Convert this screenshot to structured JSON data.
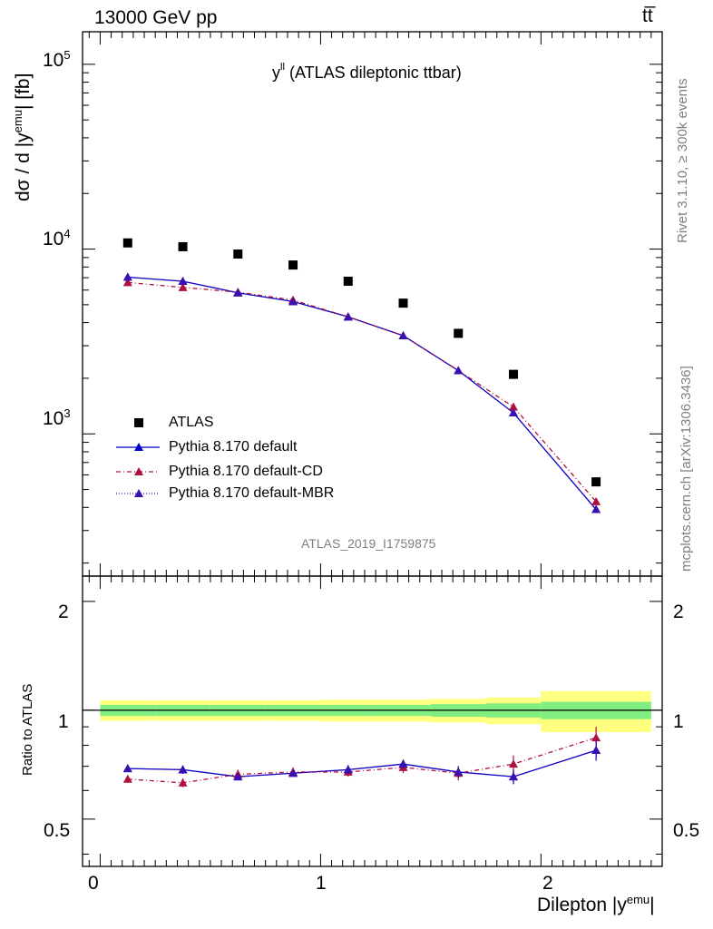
{
  "header": {
    "left": "13000 GeV pp",
    "right": "tt̅"
  },
  "plot_title": "y",
  "plot_title_sup": "ll",
  "plot_title_rest": "(ATLAS dileptonic ttbar)",
  "side_labels": {
    "rivet": "Rivet 3.1.10, ≥ 300k events",
    "mcplots": "mcplots.cern.ch [arXiv:1306.3436]"
  },
  "analysis_id": "ATLAS_2019_I1759875",
  "axes": {
    "main_ylabel": "dσ / d |y",
    "main_ylabel_sup": "emu",
    "main_ylabel_end": "| [fb]",
    "ratio_ylabel": "Ratio to ATLAS",
    "xlabel": "Dilepton |y",
    "xlabel_sup": "emu",
    "xlabel_end": "|",
    "main_ytick_labels": [
      {
        "base": "10",
        "exp": "3",
        "value": 1000
      },
      {
        "base": "10",
        "exp": "4",
        "value": 10000
      },
      {
        "base": "10",
        "exp": "5",
        "value": 100000
      }
    ],
    "ratio_ytick_labels": [
      "0.5",
      "1",
      "2"
    ],
    "xtick_labels": [
      "0",
      "1",
      "2"
    ]
  },
  "legend": [
    {
      "label": "ATLAS",
      "key": "data"
    },
    {
      "label": "Pythia 8.170 default",
      "key": "default"
    },
    {
      "label": "Pythia 8.170 default-CD",
      "key": "cd"
    },
    {
      "label": "Pythia 8.170 default-MBR",
      "key": "mbr"
    }
  ],
  "colors": {
    "default": "#0000cc",
    "cd": "#b0103c",
    "mbr": "#3a10b0",
    "data": "#000000",
    "band_outer": "#ffff80",
    "band_inner": "#80ee80"
  },
  "chart_data": {
    "type": "scatter",
    "x": [
      0.125,
      0.375,
      0.625,
      0.875,
      1.125,
      1.375,
      1.625,
      1.875,
      2.25
    ],
    "xlim": [
      -0.08,
      2.55
    ],
    "main_ylim": [
      170,
      150000
    ],
    "main_yscale": "log",
    "ratio_ylim": [
      0.37,
      2.35
    ],
    "ratio_yscale": "log",
    "bin_edges": [
      0,
      0.25,
      0.5,
      0.75,
      1.0,
      1.25,
      1.5,
      1.75,
      2.0,
      2.5
    ],
    "series": [
      {
        "name": "ATLAS",
        "key": "data",
        "values": [
          10800,
          10300,
          9400,
          8200,
          6700,
          5100,
          3500,
          2100,
          550
        ],
        "ratio": [
          1,
          1,
          1,
          1,
          1,
          1,
          1,
          1,
          1
        ]
      },
      {
        "name": "Pythia 8.170 default",
        "key": "default",
        "values": [
          7050,
          6700,
          5800,
          5200,
          4300,
          3400,
          2200,
          1300,
          390
        ],
        "ratio": [
          0.69,
          0.685,
          0.655,
          0.67,
          0.685,
          0.71,
          0.675,
          0.655,
          0.775
        ],
        "ratio_err": [
          0.015,
          0.018,
          0.015,
          0.015,
          0.02,
          0.02,
          0.025,
          0.03,
          0.05
        ]
      },
      {
        "name": "Pythia 8.170 default-CD",
        "key": "cd",
        "values": [
          6600,
          6200,
          5850,
          5300,
          4300,
          3400,
          2200,
          1400,
          430
        ],
        "ratio": [
          0.645,
          0.63,
          0.665,
          0.675,
          0.675,
          0.695,
          0.67,
          0.71,
          0.84
        ],
        "ratio_err": [
          0.015,
          0.018,
          0.02,
          0.02,
          0.02,
          0.025,
          0.03,
          0.04,
          0.06
        ]
      },
      {
        "name": "Pythia 8.170 default-MBR",
        "key": "mbr",
        "values": [
          7050,
          6700,
          5800,
          5200,
          4300,
          3400,
          2200,
          1300,
          390
        ],
        "ratio": [
          0.69,
          0.685,
          0.655,
          0.67,
          0.685,
          0.71,
          0.675,
          0.655,
          0.775
        ],
        "ratio_err": [
          0.015,
          0.018,
          0.015,
          0.015,
          0.02,
          0.02,
          0.025,
          0.03,
          0.05
        ]
      }
    ],
    "ratio_band": {
      "inner": [
        0.035,
        0.035,
        0.035,
        0.035,
        0.035,
        0.035,
        0.04,
        0.045,
        0.055
      ],
      "outer": [
        0.065,
        0.065,
        0.065,
        0.065,
        0.07,
        0.07,
        0.075,
        0.085,
        0.13
      ]
    }
  }
}
